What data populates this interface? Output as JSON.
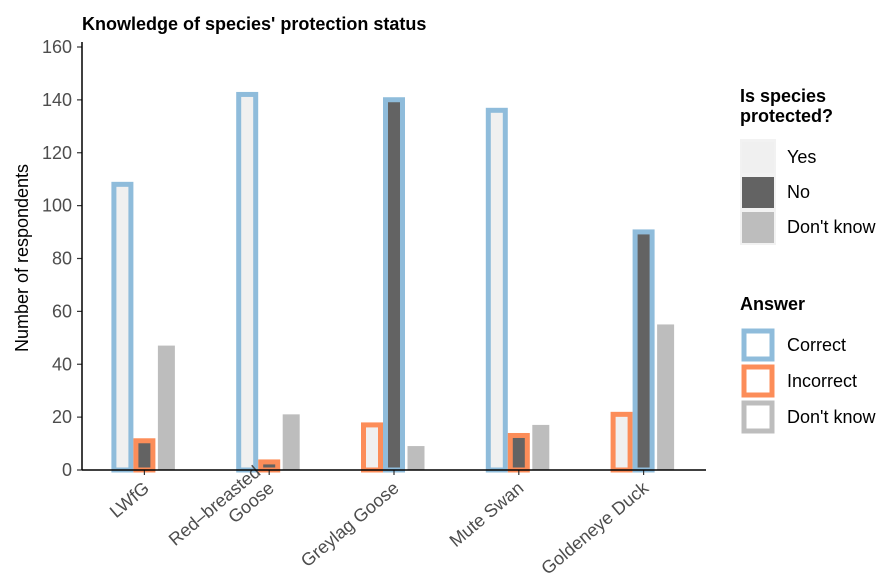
{
  "chart_data": {
    "type": "bar",
    "title": "Knowledge of species' protection status",
    "ylabel": "Number of respondents",
    "xlabel": "",
    "ylim": [
      0,
      160
    ],
    "yticks": [
      0,
      20,
      40,
      60,
      80,
      100,
      120,
      140,
      160
    ],
    "grid": false,
    "legend_position": "right",
    "categories": [
      {
        "label_lines": [
          "LWfG"
        ]
      },
      {
        "label_lines": [
          "Red–breasted",
          "Goose"
        ]
      },
      {
        "label_lines": [
          "Greylag Goose"
        ]
      },
      {
        "label_lines": [
          "Mute Swan"
        ]
      },
      {
        "label_lines": [
          "Goldeneye Duck"
        ]
      }
    ],
    "fill_legend": {
      "title_lines": [
        "Is species",
        "protected?"
      ],
      "items": [
        {
          "label": "Yes",
          "color": "#f0f0f0"
        },
        {
          "label": "No",
          "color": "#636363"
        },
        {
          "label": "Don't know",
          "color": "#bdbdbd"
        }
      ]
    },
    "outline_legend": {
      "title": "Answer",
      "items": [
        {
          "label": "Correct",
          "color": "#8fbcdb"
        },
        {
          "label": "Incorrect",
          "color": "#fc8d59"
        },
        {
          "label": "Don't know",
          "color": "#bdbdbd"
        }
      ]
    },
    "series": [
      {
        "name": "Yes",
        "fill": "#f0f0f0",
        "values": [
          109,
          143,
          18,
          137,
          22
        ],
        "answer": [
          "Correct",
          "Correct",
          "Incorrect",
          "Correct",
          "Incorrect"
        ]
      },
      {
        "name": "No",
        "fill": "#636363",
        "values": [
          12,
          4,
          141,
          14,
          91
        ],
        "answer": [
          "Incorrect",
          "Incorrect",
          "Correct",
          "Incorrect",
          "Correct"
        ]
      },
      {
        "name": "Don't know",
        "fill": "#bdbdbd",
        "values": [
          48,
          22,
          10,
          18,
          56
        ],
        "answer": [
          "Don't know",
          "Don't know",
          "Don't know",
          "Don't know",
          "Don't know"
        ]
      }
    ]
  }
}
